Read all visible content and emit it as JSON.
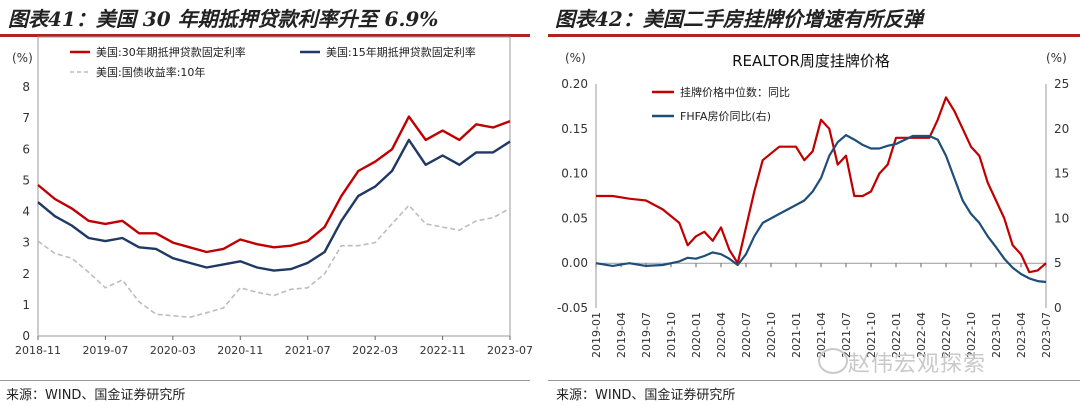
{
  "left": {
    "title": "图表41：美国 30 年期抵押贷款利率升至 6.9%",
    "source": "来源：WIND、国金证券研究所",
    "colors": {
      "s30": "#c00000",
      "s15": "#1f3864",
      "t10": "#bdbdbd"
    },
    "chart_data": {
      "type": "line",
      "y_unit": "(%)",
      "ylim": [
        0,
        8
      ],
      "y_ticks": [
        "0",
        "1",
        "2",
        "3",
        "4",
        "5",
        "6",
        "7",
        "8"
      ],
      "x_ticks": [
        "2018-11",
        "2019-07",
        "2020-03",
        "2020-11",
        "2021-07",
        "2022-03",
        "2022-11",
        "2023-07"
      ],
      "legend": [
        "美国:30年期抵押贷款固定利率",
        "美国:15年期抵押贷款固定利率",
        "美国:国债收益率:10年"
      ],
      "series": [
        {
          "name": "美国:30年期抵押贷款固定利率",
          "x": [
            0,
            2,
            4,
            6,
            8,
            10,
            12,
            14,
            16,
            18,
            20,
            22,
            24,
            26,
            28,
            30,
            32,
            34,
            36,
            38,
            40,
            42,
            44,
            46,
            48,
            50,
            52,
            54,
            56
          ],
          "values": [
            4.85,
            4.4,
            4.1,
            3.7,
            3.6,
            3.7,
            3.3,
            3.3,
            3.0,
            2.85,
            2.7,
            2.8,
            3.1,
            2.95,
            2.85,
            2.9,
            3.05,
            3.5,
            4.5,
            5.3,
            5.6,
            6.0,
            7.05,
            6.3,
            6.6,
            6.3,
            6.8,
            6.7,
            6.9
          ]
        },
        {
          "name": "美国:15年期抵押贷款固定利率",
          "x": [
            0,
            2,
            4,
            6,
            8,
            10,
            12,
            14,
            16,
            18,
            20,
            22,
            24,
            26,
            28,
            30,
            32,
            34,
            36,
            38,
            40,
            42,
            44,
            46,
            48,
            50,
            52,
            54,
            56
          ],
          "values": [
            4.3,
            3.85,
            3.55,
            3.15,
            3.05,
            3.15,
            2.85,
            2.8,
            2.5,
            2.35,
            2.2,
            2.3,
            2.4,
            2.2,
            2.1,
            2.15,
            2.35,
            2.7,
            3.7,
            4.5,
            4.8,
            5.3,
            6.3,
            5.5,
            5.8,
            5.5,
            5.9,
            5.9,
            6.25
          ]
        },
        {
          "name": "美国:国债收益率:10年",
          "x": [
            0,
            2,
            4,
            6,
            8,
            10,
            12,
            14,
            16,
            18,
            20,
            22,
            24,
            26,
            28,
            30,
            32,
            34,
            36,
            38,
            40,
            42,
            44,
            46,
            48,
            50,
            52,
            54,
            56
          ],
          "values": [
            3.05,
            2.65,
            2.5,
            2.05,
            1.55,
            1.8,
            1.1,
            0.7,
            0.65,
            0.6,
            0.75,
            0.9,
            1.55,
            1.4,
            1.3,
            1.5,
            1.55,
            2.0,
            2.9,
            2.9,
            3.0,
            3.6,
            4.2,
            3.6,
            3.5,
            3.4,
            3.7,
            3.8,
            4.1
          ]
        }
      ]
    }
  },
  "right": {
    "title": "图表42：美国二手房挂牌价增速有所反弹",
    "source": "来源：WIND、国金证券研究所",
    "colors": {
      "realtor": "#c00000",
      "fhfa": "#1f4e79"
    },
    "chart_data": {
      "type": "line",
      "title": "REALTOR周度挂牌价格",
      "y_left_unit": "(%)",
      "y_right_unit": "(%)",
      "ylim_left": [
        -0.05,
        0.2
      ],
      "ylim_right": [
        0,
        25
      ],
      "y_left_ticks": [
        "0.20",
        "0.15",
        "0.10",
        "0.05",
        "0.00",
        "-0.05"
      ],
      "y_right_ticks": [
        "25",
        "20",
        "15",
        "10",
        "5",
        "0"
      ],
      "x_ticks": [
        "2019-01",
        "2019-04",
        "2019-07",
        "2019-10",
        "2020-01",
        "2020-04",
        "2020-07",
        "2020-10",
        "2021-01",
        "2021-04",
        "2021-07",
        "2021-10",
        "2022-01",
        "2022-04",
        "2022-07",
        "2022-10",
        "2023-01",
        "2023-04",
        "2023-07"
      ],
      "legend": [
        "挂牌价格中位数：同比",
        "FHFA房价同比(右)"
      ],
      "series": [
        {
          "name": "挂牌价格中位数：同比",
          "axis": "left",
          "x": [
            0,
            2,
            4,
            6,
            8,
            10,
            11,
            12,
            13,
            14,
            15,
            16,
            17,
            18,
            19,
            20,
            22,
            24,
            25,
            26,
            27,
            28,
            29,
            30,
            31,
            32,
            33,
            34,
            35,
            36,
            38,
            40,
            41,
            42,
            43,
            44,
            45,
            46,
            47,
            48,
            49,
            50,
            51,
            52,
            53,
            54
          ],
          "values": [
            0.075,
            0.075,
            0.072,
            0.07,
            0.06,
            0.045,
            0.02,
            0.03,
            0.035,
            0.025,
            0.04,
            0.015,
            0.0,
            0.04,
            0.08,
            0.115,
            0.13,
            0.13,
            0.115,
            0.125,
            0.16,
            0.15,
            0.11,
            0.12,
            0.075,
            0.075,
            0.08,
            0.1,
            0.11,
            0.14,
            0.14,
            0.14,
            0.16,
            0.185,
            0.17,
            0.15,
            0.13,
            0.12,
            0.09,
            0.07,
            0.05,
            0.02,
            0.01,
            -0.01,
            -0.008,
            0.0
          ]
        },
        {
          "name": "FHFA房价同比(右)",
          "axis": "right",
          "x": [
            0,
            2,
            4,
            6,
            8,
            10,
            11,
            12,
            13,
            14,
            15,
            16,
            17,
            18,
            19,
            20,
            22,
            24,
            25,
            26,
            27,
            28,
            29,
            30,
            31,
            32,
            33,
            34,
            35,
            36,
            38,
            40,
            41,
            42,
            43,
            44,
            45,
            46,
            47,
            48,
            49,
            50,
            51,
            52,
            53,
            54
          ],
          "values": [
            5,
            4.7,
            5,
            4.7,
            4.8,
            5.2,
            5.6,
            5.5,
            5.8,
            6.2,
            6,
            5.5,
            4.8,
            6,
            8,
            9.5,
            10.5,
            11.5,
            12,
            13,
            14.5,
            17,
            18.5,
            19.3,
            18.8,
            18.2,
            17.8,
            17.8,
            18.1,
            18.3,
            19.2,
            19.2,
            18.8,
            17,
            14.5,
            12,
            10.5,
            9.5,
            8,
            6.8,
            5.5,
            4.5,
            3.8,
            3.3,
            3.0,
            2.9
          ]
        }
      ]
    }
  },
  "watermark": "赵伟宏观探索"
}
